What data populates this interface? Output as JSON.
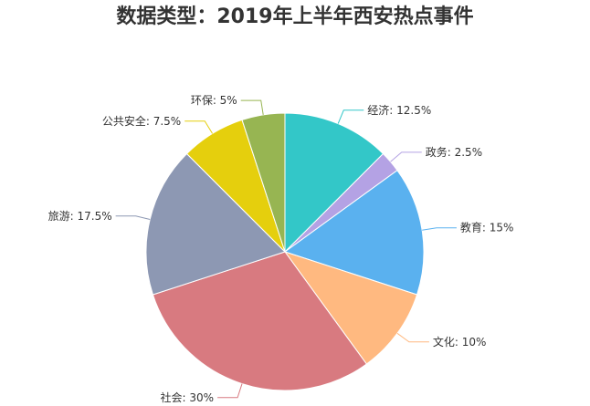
{
  "chart_data": {
    "type": "pie",
    "title": "数据类型：2019年上半年西安热点事件",
    "slices": [
      {
        "name": "经济",
        "value": 12.5,
        "label": "经济: 12.5%",
        "color": "#33c7c8"
      },
      {
        "name": "政务",
        "value": 2.5,
        "label": "政务: 2.5%",
        "color": "#b4a2e4"
      },
      {
        "name": "教育",
        "value": 15,
        "label": "教育: 15%",
        "color": "#5ab1ef"
      },
      {
        "name": "文化",
        "value": 10,
        "label": "文化: 10%",
        "color": "#ffb980"
      },
      {
        "name": "社会",
        "value": 30,
        "label": "社会: 30%",
        "color": "#d87a80"
      },
      {
        "name": "旅游",
        "value": 17.5,
        "label": "旅游: 17.5%",
        "color": "#8d98b3"
      },
      {
        "name": "公共安全",
        "value": 7.5,
        "label": "公共安全: 7.5%",
        "color": "#e5cf0d"
      },
      {
        "name": "环保",
        "value": 5,
        "label": "环保: 5%",
        "color": "#97b552"
      }
    ],
    "start_angle": "12 o'clock",
    "direction": "clockwise",
    "legend": "none",
    "label_position": "outside"
  }
}
